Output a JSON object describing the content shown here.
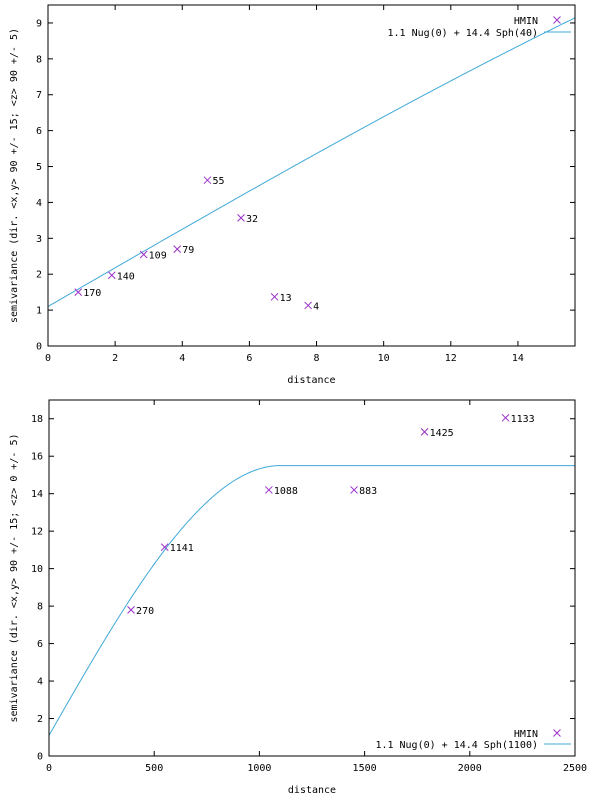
{
  "colors": {
    "points": "#9b30c8",
    "model": "#3fa9d8",
    "axes": "#000000"
  },
  "chart_data": [
    {
      "type": "scatter",
      "xlabel": "distance",
      "ylabel": "semivariance (dir. <x,y> 90 +/- 15; <z> 90 +/- 5)",
      "xlim": [
        0,
        15.7
      ],
      "ylim": [
        0,
        9.5
      ],
      "xticks": [
        "0",
        "2",
        "4",
        "6",
        "8",
        "10",
        "12",
        "14"
      ],
      "yticks": [
        "0",
        "1",
        "2",
        "3",
        "4",
        "5",
        "6",
        "7",
        "8",
        "9"
      ],
      "legend_position": "top-right",
      "series": [
        {
          "name": "HMIN",
          "kind": "points",
          "points": [
            {
              "x": 0.9,
              "y": 1.5,
              "label": "170"
            },
            {
              "x": 1.9,
              "y": 1.97,
              "label": "140"
            },
            {
              "x": 2.85,
              "y": 2.55,
              "label": "109"
            },
            {
              "x": 3.85,
              "y": 2.7,
              "label": "79"
            },
            {
              "x": 4.75,
              "y": 4.62,
              "label": "55"
            },
            {
              "x": 5.75,
              "y": 3.57,
              "label": "32"
            },
            {
              "x": 6.75,
              "y": 1.37,
              "label": "13"
            },
            {
              "x": 7.75,
              "y": 1.13,
              "label": "4"
            }
          ]
        },
        {
          "name": "1.1 Nug(0) + 14.4 Sph(40)",
          "kind": "model",
          "nugget": 1.1,
          "sill": 14.4,
          "range": 40
        }
      ]
    },
    {
      "type": "scatter",
      "xlabel": "distance",
      "ylabel": "semivariance (dir. <x,y> 90 +/- 15; <z> 0 +/- 5)",
      "xlim": [
        0,
        2500
      ],
      "ylim": [
        0,
        19
      ],
      "xticks": [
        "0",
        "500",
        "1000",
        "1500",
        "2000",
        "2500"
      ],
      "yticks": [
        "0",
        "2",
        "4",
        "6",
        "8",
        "10",
        "12",
        "14",
        "16",
        "18"
      ],
      "legend_position": "bottom-right",
      "series": [
        {
          "name": "HMIN",
          "kind": "points",
          "points": [
            {
              "x": 390,
              "y": 7.8,
              "label": "270"
            },
            {
              "x": 550,
              "y": 11.15,
              "label": "1141"
            },
            {
              "x": 1045,
              "y": 14.2,
              "label": "1088"
            },
            {
              "x": 1450,
              "y": 14.2,
              "label": "883"
            },
            {
              "x": 1785,
              "y": 17.3,
              "label": "1425"
            },
            {
              "x": 2170,
              "y": 18.05,
              "label": "1133"
            }
          ]
        },
        {
          "name": "1.1 Nug(0) + 14.4 Sph(1100)",
          "kind": "model",
          "nugget": 1.1,
          "sill": 14.4,
          "range": 1100
        }
      ]
    }
  ]
}
